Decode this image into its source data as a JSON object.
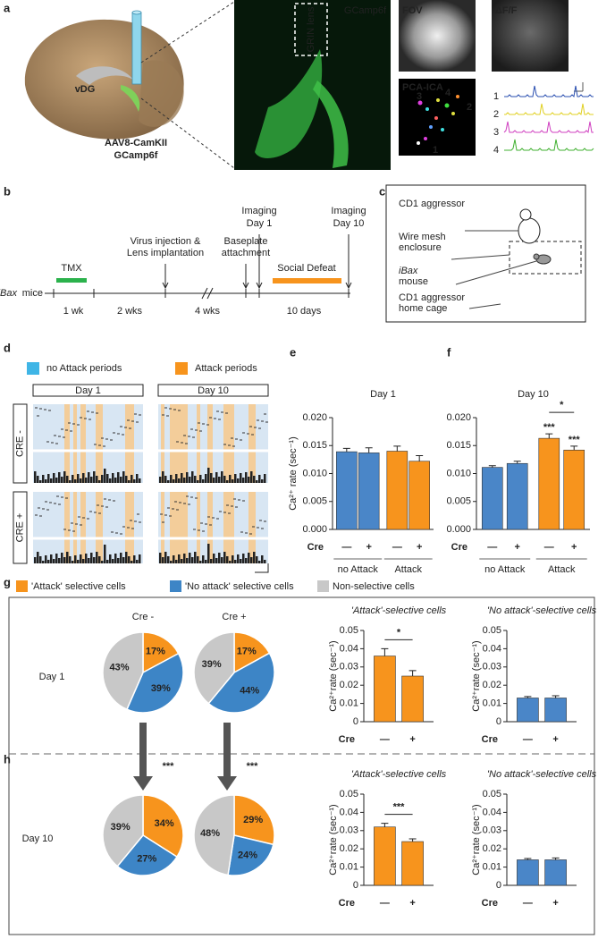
{
  "panel_letters": [
    "a",
    "b",
    "c",
    "d",
    "e",
    "f",
    "g",
    "h"
  ],
  "panel_a": {
    "region": "vDG",
    "construct": [
      "AAV8-CamKII",
      "GCamp6f"
    ],
    "image_label": "GCamp6f",
    "lens_label": "GRIN lens",
    "fov": "FOV",
    "dff": "ΔF/F",
    "pca": "PCA-ICA",
    "cell_ids": [
      "3",
      "4",
      "2",
      "1"
    ],
    "trace_ids": [
      "1",
      "2",
      "3",
      "4"
    ]
  },
  "panel_b": {
    "strain": [
      "iBax",
      "mice"
    ],
    "tmx": "TMX",
    "virus": [
      "Virus injection &",
      "Lens implantation"
    ],
    "baseplate": [
      "Baseplate",
      "attachment"
    ],
    "imaging_1": [
      "Imaging",
      "Day 1"
    ],
    "imaging_10": [
      "Imaging",
      "Day 10"
    ],
    "defeat": "Social Defeat",
    "intervals": [
      "1 wk",
      "2 wks",
      "4 wks",
      "10 days"
    ]
  },
  "panel_c": {
    "aggressor": "CD1 aggressor",
    "mesh": [
      "Wire mesh",
      "enclosure"
    ],
    "mouse": [
      "iBax",
      "mouse"
    ],
    "cage": [
      "CD1 aggressor",
      "home cage"
    ]
  },
  "panel_d": {
    "legend": [
      "no Attack periods",
      "Attack periods"
    ],
    "days": [
      "Day 1",
      "Day 10"
    ],
    "rows": [
      "CRE -",
      "CRE +"
    ]
  },
  "pie_legend": {
    "labels": [
      "'Attack' selective cells",
      "'No attack' selective cells",
      "Non-selective cells"
    ],
    "colors": [
      "#f7941d",
      "#3d85c6",
      "#c8c8c8"
    ]
  },
  "panel_gh": {
    "col_labels": [
      "Cre -",
      "Cre +"
    ],
    "row_labels": [
      "Day 1",
      "Day 10"
    ],
    "arrow_labels": [
      "***",
      "***"
    ]
  },
  "chart_data": [
    {
      "type": "bar",
      "title": "Day 1",
      "ylabel": "Ca²⁺ rate (sec⁻¹)",
      "row_label": "Cre",
      "categories": [
        "—",
        "+",
        "—",
        "+"
      ],
      "groups": [
        "no Attack",
        "Attack"
      ],
      "values": [
        0.0139,
        0.0137,
        0.014,
        0.0122
      ],
      "errors": [
        0.0006,
        0.0009,
        0.0009,
        0.001
      ],
      "colors": [
        "#4a86c8",
        "#4a86c8",
        "#f7941d",
        "#f7941d"
      ],
      "ylim": [
        0,
        0.02
      ],
      "yticks": [
        {
          "value": 0,
          "label": "0.000"
        },
        0.005,
        {
          "value": 0.01,
          "label": "0.010"
        },
        0.015,
        {
          "value": 0.02,
          "label": "0.020"
        }
      ]
    },
    {
      "type": "bar",
      "title": "Day 10",
      "row_label": "Cre",
      "categories": [
        "—",
        "+",
        "—",
        "+"
      ],
      "groups": [
        "no Attack",
        "Attack"
      ],
      "values": [
        0.0111,
        0.0118,
        0.0163,
        0.0142
      ],
      "errors": [
        0.0003,
        0.0004,
        0.0008,
        0.0007
      ],
      "colors": [
        "#4a86c8",
        "#4a86c8",
        "#f7941d",
        "#f7941d"
      ],
      "ylim": [
        0,
        0.02
      ],
      "yticks": [
        {
          "value": 0,
          "label": "0.000"
        },
        0.005,
        {
          "value": 0.01,
          "label": "0.010"
        },
        0.015,
        {
          "value": 0.02,
          "label": "0.020"
        }
      ],
      "annotations": [
        "***",
        "***",
        "*"
      ]
    },
    {
      "type": "pie",
      "values": [
        17,
        39,
        43
      ],
      "value_labels": [
        "17%",
        "39%",
        "43%"
      ]
    },
    {
      "type": "pie",
      "values": [
        17,
        44,
        39
      ],
      "value_labels": [
        "17%",
        "44%",
        "39%"
      ]
    },
    {
      "type": "bar",
      "title": "'Attack'-selective cells",
      "ylabel": "Ca²⁺rate (sec⁻¹)",
      "row_label": "Cre",
      "categories": [
        "—",
        "+"
      ],
      "values": [
        0.036,
        0.025
      ],
      "errors": [
        0.004,
        0.003
      ],
      "colors": [
        "#f7941d",
        "#f7941d"
      ],
      "ylim": [
        0,
        0.05
      ],
      "yticks": [
        0,
        0.01,
        0.02,
        0.03,
        0.04,
        0.05
      ],
      "annotations": [
        "*"
      ]
    },
    {
      "type": "bar",
      "title": "'No attack'-selective cells",
      "ylabel": "Ca²⁺rate (sec⁻¹)",
      "row_label": "Cre",
      "categories": [
        "—",
        "+"
      ],
      "values": [
        0.013,
        0.013
      ],
      "errors": [
        0.0008,
        0.0012
      ],
      "colors": [
        "#4a86c8",
        "#4a86c8"
      ],
      "ylim": [
        0,
        0.05
      ],
      "yticks": [
        0,
        0.01,
        0.02,
        0.03,
        0.04,
        0.05
      ]
    },
    {
      "type": "pie",
      "values": [
        34,
        27,
        39
      ],
      "value_labels": [
        "34%",
        "27%",
        "39%"
      ]
    },
    {
      "type": "pie",
      "values": [
        29,
        24,
        48
      ],
      "value_labels": [
        "29%",
        "24%",
        "48%"
      ]
    },
    {
      "type": "bar",
      "title": "'Attack'-selective cells",
      "ylabel": "Ca²⁺rate (sec⁻¹)",
      "row_label": "Cre",
      "categories": [
        "—",
        "+"
      ],
      "values": [
        0.032,
        0.024
      ],
      "errors": [
        0.002,
        0.0015
      ],
      "colors": [
        "#f7941d",
        "#f7941d"
      ],
      "ylim": [
        0,
        0.05
      ],
      "yticks": [
        0,
        0.01,
        0.02,
        0.03,
        0.04,
        0.05
      ],
      "annotations": [
        "***"
      ]
    },
    {
      "type": "bar",
      "title": "'No attack'-selective cells",
      "ylabel": "Ca²⁺rate (sec⁻¹)",
      "row_label": "Cre",
      "categories": [
        "—",
        "+"
      ],
      "values": [
        0.014,
        0.014
      ],
      "errors": [
        0.0007,
        0.001
      ],
      "colors": [
        "#4a86c8",
        "#4a86c8"
      ],
      "ylim": [
        0,
        0.05
      ],
      "yticks": [
        0,
        0.01,
        0.02,
        0.03,
        0.04,
        0.05
      ]
    }
  ]
}
